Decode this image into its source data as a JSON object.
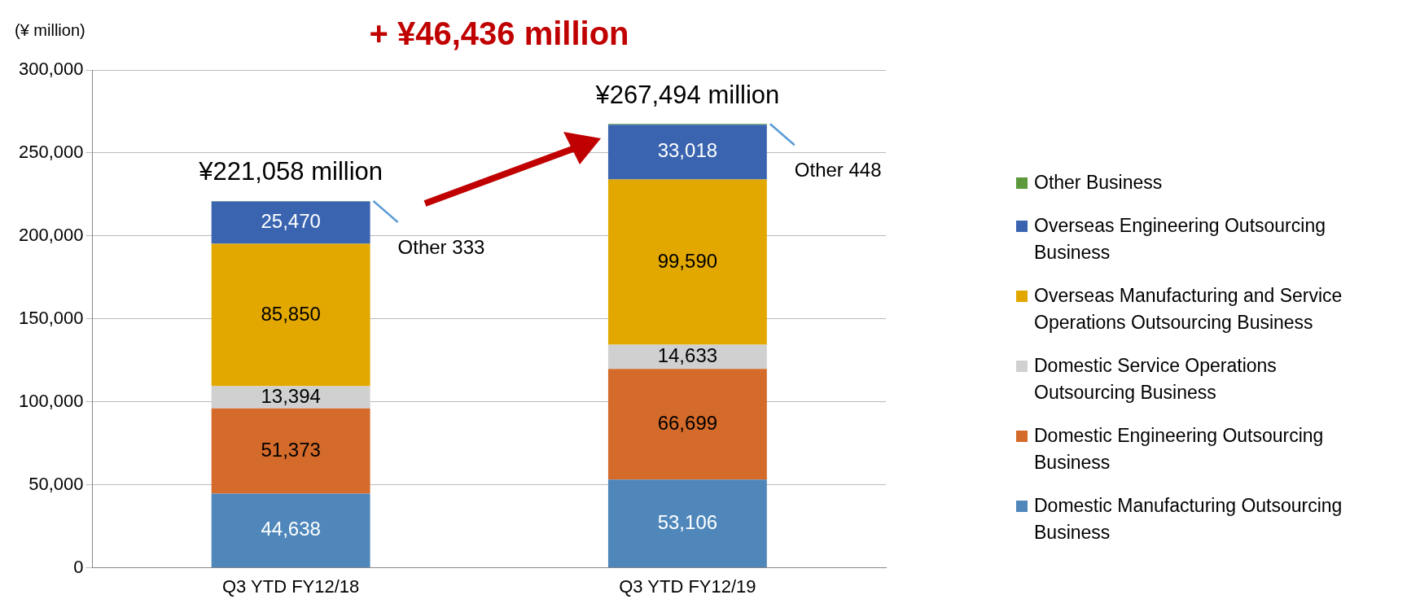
{
  "chart_data": {
    "type": "bar",
    "title": "+ ¥46,436 million",
    "ylabel": "(¥ million)",
    "categories": [
      "Q3 YTD FY12/18",
      "Q3 YTD FY12/19"
    ],
    "stacked": true,
    "ylim": [
      0,
      300000
    ],
    "yticks": [
      {
        "value": 0,
        "label": "0"
      },
      {
        "value": 50000,
        "label": "50,000"
      },
      {
        "value": 100000,
        "label": "100,000"
      },
      {
        "value": 150000,
        "label": "150,000"
      },
      {
        "value": 200000,
        "label": "200,000"
      },
      {
        "value": 250000,
        "label": "250,000"
      },
      {
        "value": 300000,
        "label": "300,000"
      }
    ],
    "grid": "y",
    "legend": "right",
    "series": [
      {
        "name": "Domestic Manufacturing Outsourcing Business",
        "color": "#4f87bb",
        "values": [
          44638,
          53106
        ],
        "value_labels": [
          "44,638",
          "53,106"
        ]
      },
      {
        "name": "Domestic Engineering Outsourcing Business",
        "color": "#d46b2a",
        "values": [
          51373,
          66699
        ],
        "value_labels": [
          "51,373",
          "66,699"
        ]
      },
      {
        "name": "Domestic Service Operations Outsourcing Business",
        "color": "#d0d0d0",
        "values": [
          13394,
          14633
        ],
        "value_labels": [
          "13,394",
          "14,633"
        ]
      },
      {
        "name": "Overseas Manufacturing and Service Operations Outsourcing Business",
        "color": "#e2a800",
        "values": [
          85850,
          99590
        ],
        "value_labels": [
          "85,850",
          "99,590"
        ]
      },
      {
        "name": "Overseas Engineering Outsourcing Business",
        "color": "#3a64b0",
        "values": [
          25470,
          33018
        ],
        "value_labels": [
          "25,470",
          "33,018"
        ]
      },
      {
        "name": "Other Business",
        "color": "#5d9a3c",
        "values": [
          333,
          448
        ],
        "value_labels": [
          "Other 333",
          "Other 448"
        ]
      }
    ],
    "totals": [
      "¥221,058 million",
      "¥267,494 million"
    ]
  }
}
